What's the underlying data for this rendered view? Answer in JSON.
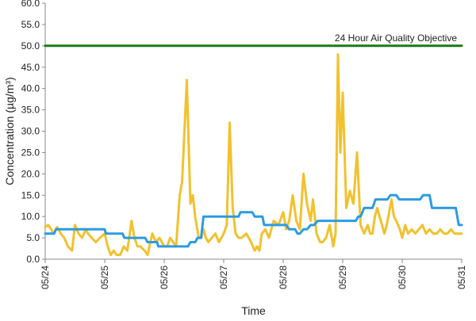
{
  "chart_data": {
    "type": "line",
    "title": "",
    "xlabel": "Time",
    "ylabel": "Concentration (µg/m³)",
    "ylim": [
      0,
      60
    ],
    "yticks": [
      "0.0",
      "5.0",
      "10.0",
      "15.0",
      "20.0",
      "25.0",
      "30.0",
      "35.0",
      "40.0",
      "45.0",
      "50.0",
      "55.0",
      "60.0"
    ],
    "xlim": [
      "05/24",
      "05/31"
    ],
    "xticks": [
      "05/24",
      "05/25",
      "05/26",
      "05/27",
      "05/28",
      "05/29",
      "05/30",
      "05/31"
    ],
    "grid": false,
    "colors": {
      "series_a": "#f2c12e",
      "series_b": "#2b9be3",
      "objective": "#1a7a1a"
    },
    "annotations": [
      {
        "text": "24 Hour Air Quality Objective",
        "y": 50
      }
    ],
    "series": [
      {
        "color": "#f2c12e",
        "x": [
          0.0,
          0.05,
          0.1,
          0.14,
          0.2,
          0.26,
          0.32,
          0.38,
          0.45,
          0.5,
          0.56,
          0.62,
          0.68,
          0.72,
          0.78,
          0.85,
          0.92,
          1.0,
          1.05,
          1.1,
          1.15,
          1.2,
          1.26,
          1.32,
          1.38,
          1.45,
          1.5,
          1.55,
          1.6,
          1.67,
          1.72,
          1.8,
          1.86,
          1.92,
          2.0,
          2.05,
          2.1,
          2.15,
          2.2,
          2.26,
          2.3,
          2.38,
          2.44,
          2.48,
          2.52,
          2.58,
          2.62,
          2.66,
          2.7,
          2.74,
          2.8,
          2.86,
          2.92,
          3.0,
          3.05,
          3.1,
          3.15,
          3.2,
          3.25,
          3.3,
          3.38,
          3.46,
          3.52,
          3.56,
          3.6,
          3.64,
          3.7,
          3.76,
          3.84,
          3.92,
          4.0,
          4.05,
          4.1,
          4.16,
          4.22,
          4.28,
          4.34,
          4.4,
          4.46,
          4.5,
          4.56,
          4.62,
          4.66,
          4.72,
          4.78,
          4.84,
          4.88,
          4.92,
          4.96,
          5.0,
          5.06,
          5.12,
          5.18,
          5.24,
          5.3,
          5.36,
          5.42,
          5.46,
          5.5,
          5.54,
          5.58,
          5.62,
          5.66,
          5.7,
          5.74,
          5.78,
          5.82,
          5.86,
          5.9,
          5.96,
          6.0,
          6.05,
          6.1,
          6.16,
          6.22,
          6.28,
          6.34,
          6.4,
          6.46,
          6.52,
          6.58,
          6.64,
          6.7,
          6.76,
          6.82,
          6.88,
          6.94,
          7.0
        ],
        "y": [
          7.5,
          8.0,
          7.0,
          6.0,
          7.5,
          6.0,
          5.0,
          3.0,
          2.0,
          8.0,
          6.0,
          5.0,
          7.0,
          6.0,
          5.0,
          4.0,
          5.0,
          6.0,
          3.0,
          1.0,
          2.0,
          1.0,
          1.0,
          3.0,
          2.0,
          9.0,
          5.0,
          3.0,
          3.0,
          2.0,
          1.0,
          6.0,
          4.0,
          5.0,
          3.0,
          3.0,
          5.0,
          4.0,
          3.0,
          15.0,
          18.0,
          42.0,
          13.0,
          15.0,
          10.0,
          5.0,
          5.0,
          7.0,
          5.0,
          4.0,
          5.0,
          6.0,
          4.0,
          6.0,
          8.0,
          32.0,
          12.0,
          6.0,
          5.0,
          5.0,
          6.0,
          4.0,
          2.0,
          3.0,
          2.0,
          6.0,
          7.0,
          5.0,
          9.0,
          8.0,
          11.0,
          7.0,
          9.0,
          15.0,
          9.0,
          7.0,
          20.0,
          13.0,
          9.0,
          14.0,
          6.0,
          4.0,
          4.0,
          5.0,
          8.0,
          3.0,
          6.0,
          48.0,
          25.0,
          39.0,
          12.0,
          16.0,
          13.0,
          25.0,
          8.0,
          6.0,
          8.0,
          6.0,
          6.0,
          10.0,
          12.0,
          10.0,
          8.0,
          6.0,
          8.0,
          11.0,
          14.0,
          10.0,
          9.0,
          7.0,
          5.0,
          8.0,
          6.0,
          7.0,
          6.0,
          7.0,
          8.0,
          6.0,
          7.0,
          6.0,
          6.0,
          7.0,
          6.0,
          6.0,
          7.0,
          6.0,
          6.0,
          6.0
        ]
      },
      {
        "color": "#2b9be3",
        "x": [
          0.0,
          0.15,
          0.18,
          1.0,
          1.02,
          1.3,
          1.33,
          1.68,
          1.72,
          1.88,
          1.9,
          2.4,
          2.44,
          2.52,
          2.56,
          2.62,
          2.66,
          3.25,
          3.28,
          3.48,
          3.52,
          3.65,
          3.68,
          4.05,
          4.1,
          4.2,
          4.24,
          4.28,
          4.34,
          4.4,
          4.46,
          4.52,
          4.58,
          4.72,
          4.76,
          5.0,
          5.05,
          5.22,
          5.26,
          5.3,
          5.36,
          5.5,
          5.55,
          5.75,
          5.8,
          5.9,
          5.95,
          6.3,
          6.35,
          6.46,
          6.5,
          6.9,
          6.95,
          7.0
        ],
        "y": [
          6.0,
          6.0,
          7.0,
          7.0,
          6.0,
          6.0,
          5.0,
          5.0,
          4.0,
          4.0,
          3.0,
          3.0,
          4.0,
          4.0,
          5.0,
          5.0,
          10.0,
          10.0,
          11.0,
          11.0,
          10.0,
          10.0,
          8.0,
          8.0,
          7.0,
          7.0,
          6.0,
          6.0,
          7.0,
          7.0,
          8.0,
          8.0,
          9.0,
          9.0,
          9.0,
          9.0,
          9.0,
          9.0,
          10.0,
          10.0,
          12.0,
          12.0,
          14.0,
          14.0,
          15.0,
          15.0,
          14.0,
          14.0,
          15.0,
          15.0,
          12.0,
          12.0,
          8.0,
          8.0
        ]
      },
      {
        "color": "#1a7a1a",
        "x": [
          0.0,
          7.0
        ],
        "y": [
          50.0,
          50.0
        ]
      }
    ]
  }
}
